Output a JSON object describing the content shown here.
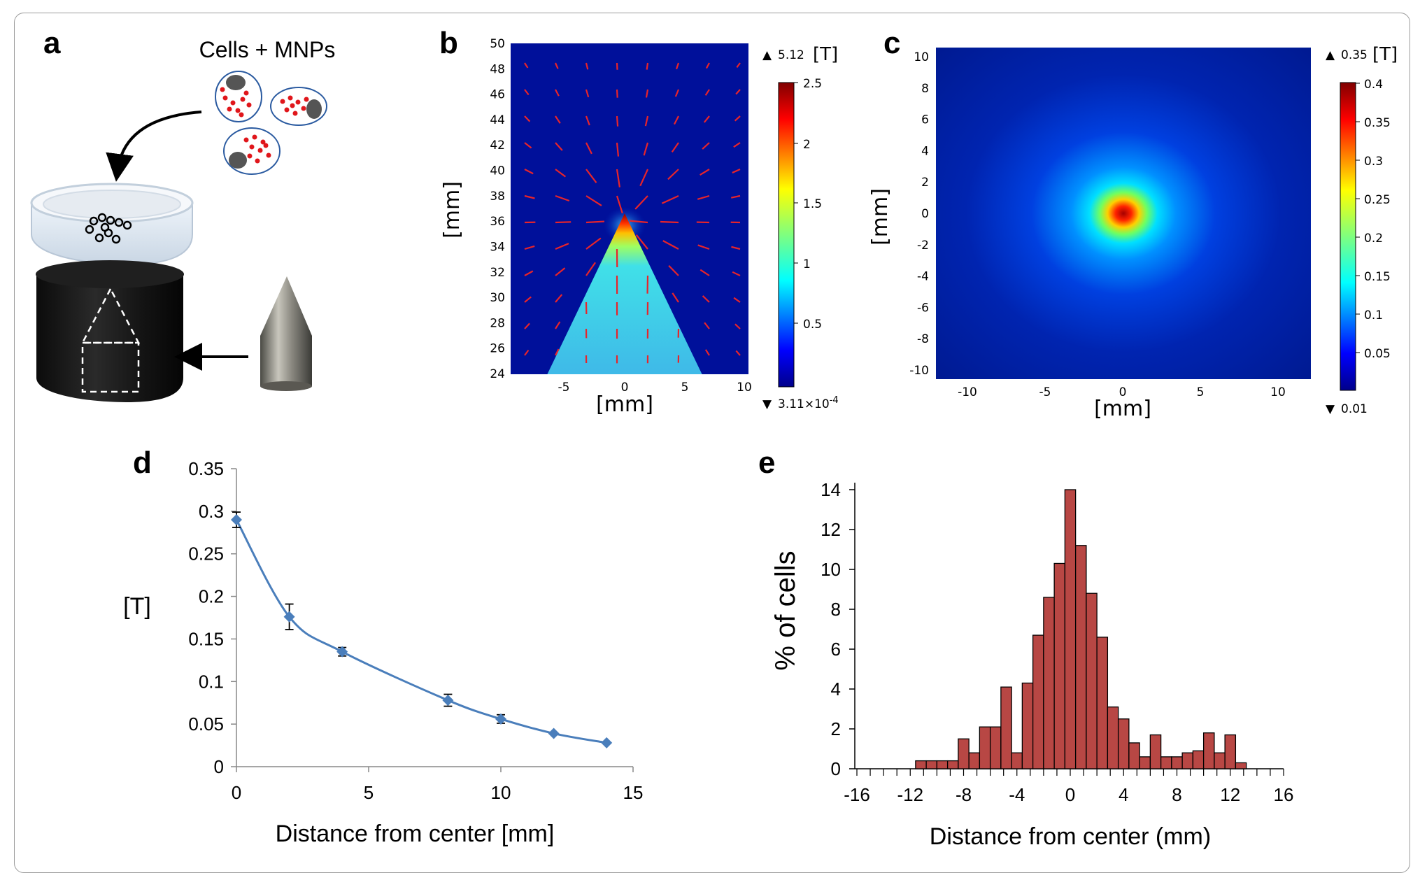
{
  "panel_labels": {
    "a": "a",
    "b": "b",
    "c": "c",
    "d": "d",
    "e": "e"
  },
  "panel_a": {
    "caption": "Cells + MNPs"
  },
  "panel_b": {
    "xlabel": "[mm]",
    "ylabel": "[mm]",
    "xticks": [
      "-5",
      "0",
      "5",
      "10"
    ],
    "yticks": [
      "24",
      "26",
      "28",
      "30",
      "32",
      "34",
      "36",
      "38",
      "40",
      "42",
      "44",
      "46",
      "48",
      "50"
    ],
    "colorbar": {
      "max_label": "5.12",
      "unit": "[T]",
      "min_label": "3.11×10",
      "min_exp": "-4",
      "ticks": [
        "2.5",
        "2",
        "1.5",
        "1",
        "0.5"
      ],
      "max_marker": "▲",
      "min_marker": "▼"
    }
  },
  "panel_c": {
    "xlabel": "[mm]",
    "ylabel": "[mm]",
    "xticks": [
      "-10",
      "-5",
      "0",
      "5",
      "10"
    ],
    "yticks": [
      "10",
      "8",
      "6",
      "4",
      "2",
      "0",
      "-2",
      "-4",
      "-6",
      "-8",
      "-10"
    ],
    "colorbar": {
      "max_label": "0.35",
      "unit": "[T]",
      "min_label": "0.01",
      "ticks": [
        "0.4",
        "0.35",
        "0.3",
        "0.25",
        "0.2",
        "0.15",
        "0.1",
        "0.05"
      ],
      "max_marker": "▲",
      "min_marker": "▼"
    }
  },
  "chart_data": [
    {
      "panel": "d",
      "type": "line",
      "title": "",
      "xlabel": "Distance from center [mm]",
      "ylabel": "[T]",
      "xlim": [
        0,
        15
      ],
      "ylim": [
        0,
        0.35
      ],
      "xtick_labels": [
        "0",
        "5",
        "10",
        "15"
      ],
      "ytick_labels": [
        "0",
        "0.05",
        "0.1",
        "0.15",
        "0.2",
        "0.25",
        "0.3",
        "0.35"
      ],
      "x": [
        0,
        2,
        4,
        8,
        10,
        12,
        14
      ],
      "y": [
        0.29,
        0.176,
        0.135,
        0.078,
        0.056,
        0.039,
        0.028
      ],
      "error": [
        0.009,
        0.015,
        0.005,
        0.007,
        0.005,
        0.0,
        0.0
      ],
      "marker": "diamond",
      "color": "#4a7ebb"
    },
    {
      "panel": "e",
      "type": "bar",
      "title": "",
      "xlabel": "Distance from center (mm)",
      "ylabel": "% of cells",
      "xlim": [
        -16,
        16
      ],
      "ylim": [
        0,
        14
      ],
      "xtick_labels": [
        "-16",
        "-12",
        "-8",
        "-4",
        "0",
        "4",
        "8",
        "12",
        "16"
      ],
      "ytick_labels": [
        "0",
        "2",
        "4",
        "6",
        "8",
        "10",
        "12",
        "14"
      ],
      "bin_width": 0.8,
      "bin_start": -11.6,
      "values": [
        0.4,
        0.4,
        0.4,
        0.4,
        1.5,
        0.8,
        2.1,
        2.1,
        4.1,
        0.8,
        4.3,
        6.7,
        8.6,
        10.3,
        14.0,
        11.2,
        8.8,
        6.6,
        3.1,
        2.5,
        1.3,
        0.6,
        1.7,
        0.6,
        0.6,
        0.8,
        0.9,
        1.8,
        0.8,
        1.7,
        0.3
      ],
      "color": "#b84744"
    }
  ]
}
